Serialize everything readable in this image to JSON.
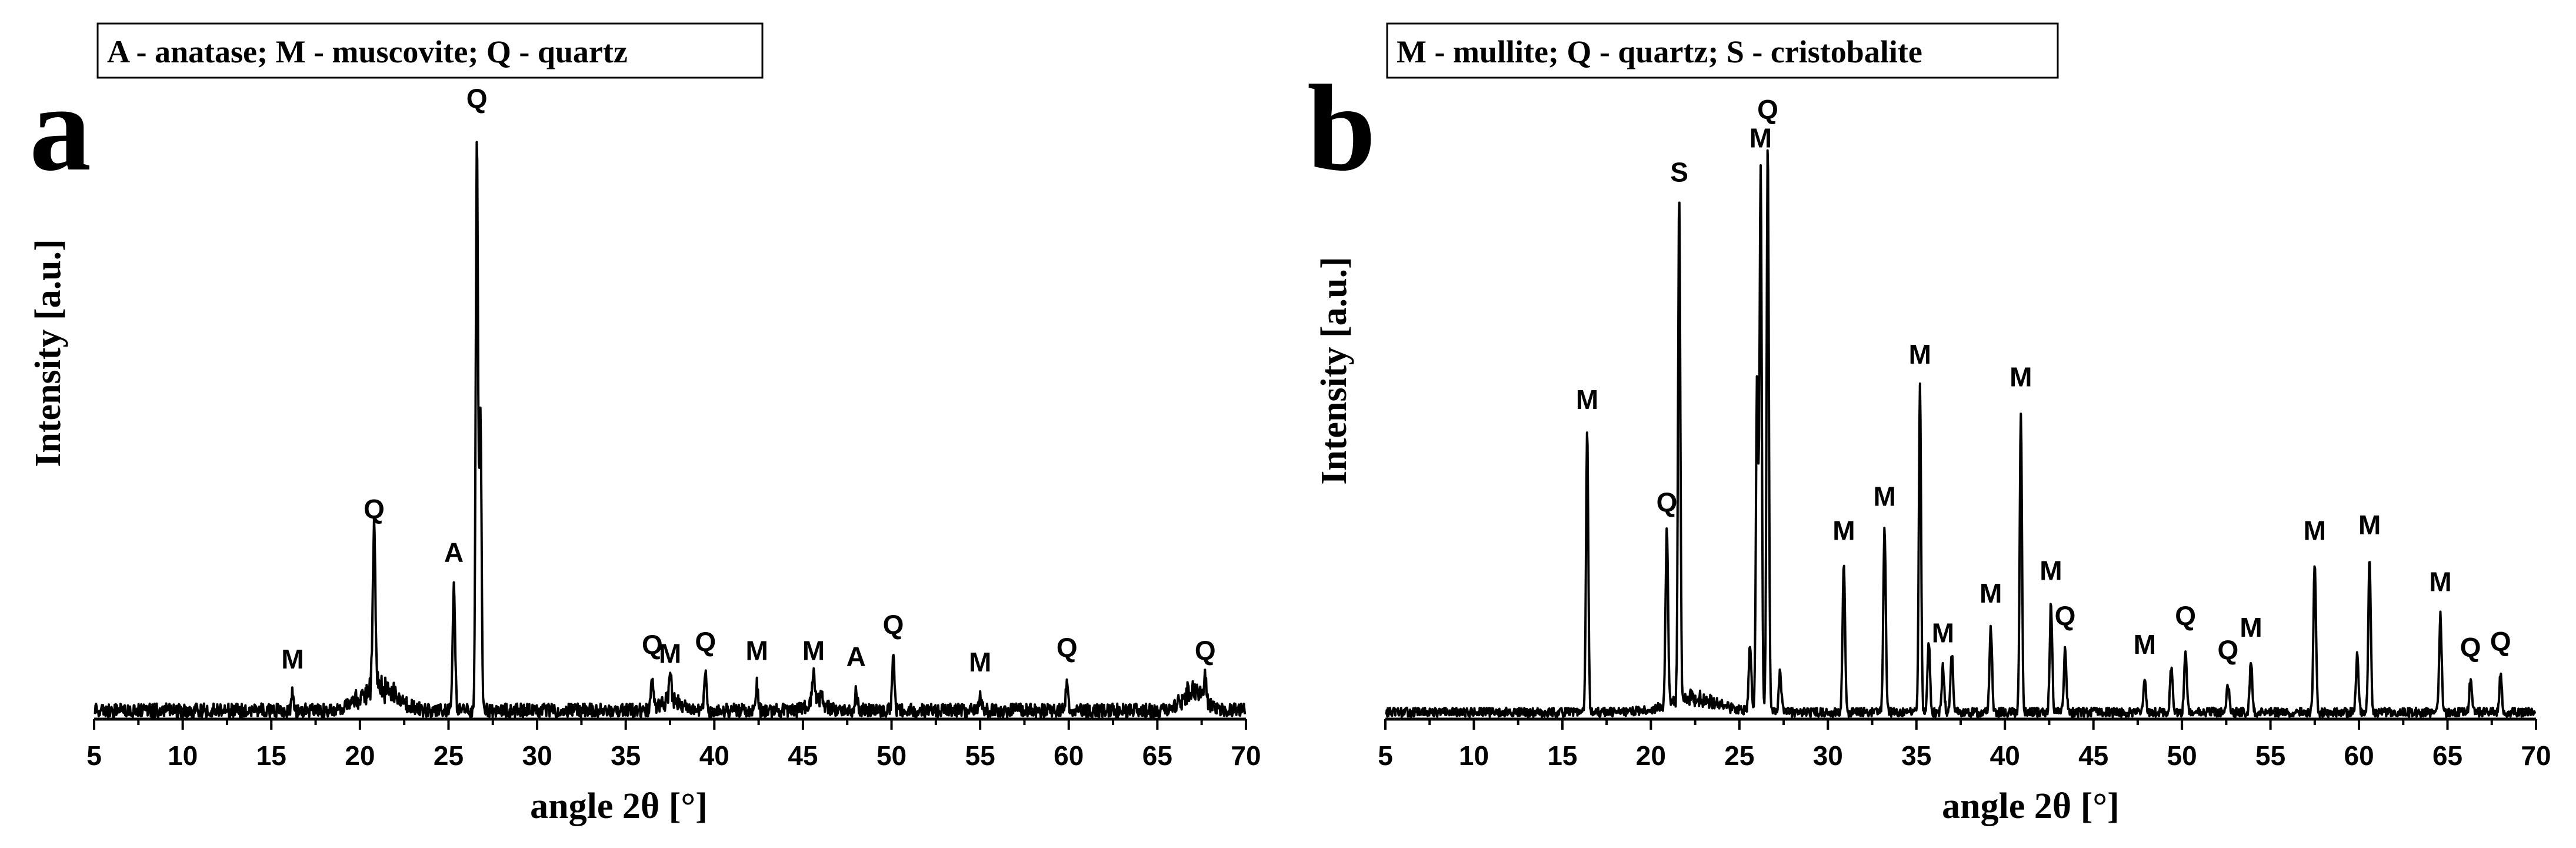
{
  "chart_data": [
    {
      "type": "line",
      "panel_label": "a",
      "legend": "A - anatase; M - muscovite; Q - quartz",
      "xlabel": "angle 2θ [°]",
      "ylabel": "Intensity [a.u.]",
      "xlim": [
        5,
        70
      ],
      "ylim": [
        0,
        100
      ],
      "xticks": [
        5,
        10,
        15,
        20,
        25,
        30,
        35,
        40,
        45,
        50,
        55,
        60,
        65,
        70
      ],
      "x_tick_labels": [
        "5",
        "10",
        "15",
        "20",
        "25",
        "30",
        "35",
        "40",
        "45",
        "50",
        "55",
        "60",
        "65",
        "70"
      ],
      "baseline": 1.5,
      "noise": 1.2,
      "humps": [
        {
          "center": 21.0,
          "height": 4.0,
          "width": 1.4
        },
        {
          "center": 37.5,
          "height": 1.8,
          "width": 0.8
        },
        {
          "center": 45.8,
          "height": 2.2,
          "width": 0.6
        },
        {
          "center": 67.0,
          "height": 3.2,
          "width": 0.8
        }
      ],
      "peaks": [
        {
          "x": 16.2,
          "y": 3.0,
          "label": "M"
        },
        {
          "x": 20.8,
          "y": 29.0,
          "label": "Q"
        },
        {
          "x": 25.3,
          "y": 21.5,
          "label": "A"
        },
        {
          "x": 26.6,
          "y": 100.0,
          "label": "Q"
        },
        {
          "x": 26.8,
          "y": 52.0,
          "label": ""
        },
        {
          "x": 36.5,
          "y": 5.5,
          "label": "Q"
        },
        {
          "x": 37.5,
          "y": 4.0,
          "label": "M"
        },
        {
          "x": 39.5,
          "y": 6.0,
          "label": "Q"
        },
        {
          "x": 42.4,
          "y": 4.5,
          "label": "M"
        },
        {
          "x": 45.6,
          "y": 4.5,
          "label": "M"
        },
        {
          "x": 48.0,
          "y": 3.5,
          "label": "A"
        },
        {
          "x": 50.1,
          "y": 9.0,
          "label": "Q"
        },
        {
          "x": 55.0,
          "y": 2.5,
          "label": "M"
        },
        {
          "x": 59.9,
          "y": 5.0,
          "label": "Q"
        },
        {
          "x": 67.7,
          "y": 4.5,
          "label": "Q"
        }
      ]
    },
    {
      "type": "line",
      "panel_label": "b",
      "legend": "M - mullite; Q - quartz; S - cristobalite",
      "xlabel": "angle 2θ [°]",
      "ylabel": "Intensity [a.u.]",
      "xlim": [
        5,
        70
      ],
      "ylim": [
        0,
        100
      ],
      "xticks": [
        5,
        10,
        15,
        20,
        25,
        30,
        35,
        40,
        45,
        50,
        55,
        60,
        65,
        70
      ],
      "x_tick_labels": [
        "5",
        "10",
        "15",
        "20",
        "25",
        "30",
        "35",
        "40",
        "45",
        "50",
        "55",
        "60",
        "65",
        "70"
      ],
      "baseline": 1.2,
      "noise": 0.8,
      "humps": [
        {
          "center": 22.5,
          "height": 2.5,
          "width": 2.0
        }
      ],
      "peaks": [
        {
          "x": 16.4,
          "y": 49.0,
          "label": "M"
        },
        {
          "x": 20.9,
          "y": 31.0,
          "label": "Q"
        },
        {
          "x": 21.6,
          "y": 89.0,
          "label": "S"
        },
        {
          "x": 25.6,
          "y": 12.0,
          "label": ""
        },
        {
          "x": 26.0,
          "y": 60.0,
          "label": ""
        },
        {
          "x": 26.2,
          "y": 95.0,
          "label": "M"
        },
        {
          "x": 26.6,
          "y": 100.0,
          "label": "Q"
        },
        {
          "x": 27.3,
          "y": 7.0,
          "label": ""
        },
        {
          "x": 30.9,
          "y": 26.0,
          "label": "M"
        },
        {
          "x": 33.2,
          "y": 32.0,
          "label": "M"
        },
        {
          "x": 35.2,
          "y": 57.0,
          "label": "M"
        },
        {
          "x": 35.7,
          "y": 12.0,
          "label": ""
        },
        {
          "x": 36.5,
          "y": 8.0,
          "label": "M"
        },
        {
          "x": 37.0,
          "y": 10.0,
          "label": ""
        },
        {
          "x": 39.2,
          "y": 15.0,
          "label": "M"
        },
        {
          "x": 40.9,
          "y": 53.0,
          "label": "M"
        },
        {
          "x": 42.6,
          "y": 19.0,
          "label": "M"
        },
        {
          "x": 43.4,
          "y": 11.0,
          "label": "Q"
        },
        {
          "x": 47.9,
          "y": 6.0,
          "label": "M"
        },
        {
          "x": 49.4,
          "y": 8.0,
          "label": ""
        },
        {
          "x": 50.2,
          "y": 11.0,
          "label": "Q"
        },
        {
          "x": 52.6,
          "y": 5.0,
          "label": "Q"
        },
        {
          "x": 53.9,
          "y": 9.0,
          "label": "M"
        },
        {
          "x": 57.5,
          "y": 26.0,
          "label": "M"
        },
        {
          "x": 59.9,
          "y": 10.0,
          "label": ""
        },
        {
          "x": 60.6,
          "y": 27.0,
          "label": "M"
        },
        {
          "x": 64.6,
          "y": 17.0,
          "label": "M"
        },
        {
          "x": 66.3,
          "y": 5.5,
          "label": "Q"
        },
        {
          "x": 68.0,
          "y": 6.5,
          "label": "Q"
        }
      ]
    }
  ]
}
